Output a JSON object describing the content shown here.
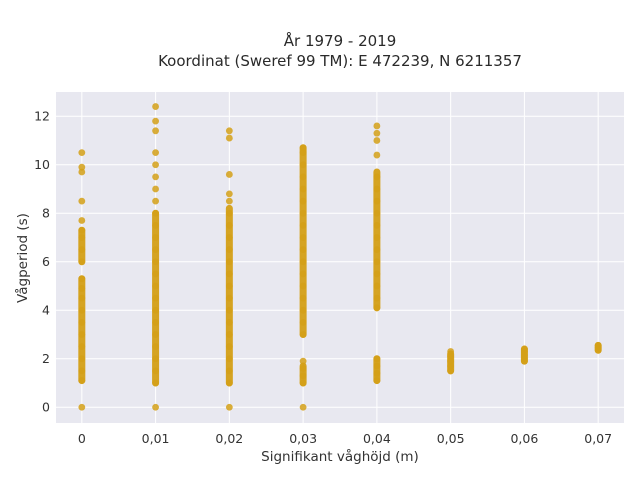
{
  "chart_data": {
    "type": "scatter",
    "title_line1": "År 1979 - 2019",
    "title_line2": "Koordinat (Sweref 99 TM): E 472239, N 6211357",
    "xlabel": "Signifikant våghöjd (m)",
    "ylabel": "Vågperiod (s)",
    "xlim": [
      -0.0035,
      0.0735
    ],
    "ylim": [
      -0.65,
      13.0
    ],
    "x_ticks": [
      0,
      0.01,
      0.02,
      0.03,
      0.04,
      0.05,
      0.06,
      0.07
    ],
    "x_tick_labels": [
      "0",
      "0,01",
      "0,02",
      "0,03",
      "0,04",
      "0,05",
      "0,06",
      "0,07"
    ],
    "y_ticks": [
      0,
      2,
      4,
      6,
      8,
      10,
      12
    ],
    "y_tick_labels": [
      "0",
      "2",
      "4",
      "6",
      "8",
      "10",
      "12"
    ],
    "grid": true,
    "colors": {
      "marker": "#D4A017",
      "plot_background": "#E8E8F0",
      "grid": "#FFFFFF"
    },
    "series": [
      {
        "points": [
          [
            0,
            0
          ],
          [
            0,
            1.1
          ],
          [
            0,
            1.5
          ],
          [
            0,
            2.0
          ],
          [
            0,
            2.5
          ],
          [
            0,
            3.0
          ],
          [
            0,
            3.5
          ],
          [
            0,
            4.0
          ],
          [
            0,
            4.5
          ],
          [
            0,
            4.9
          ],
          [
            0,
            5.3
          ],
          [
            0,
            6.0
          ],
          [
            0,
            6.5
          ],
          [
            0,
            7.0
          ],
          [
            0,
            7.3
          ],
          [
            0,
            7.7
          ],
          [
            0,
            8.5
          ],
          [
            0,
            9.7
          ],
          [
            0,
            9.9
          ],
          [
            0,
            10.5
          ],
          [
            0.01,
            0
          ],
          [
            0.01,
            1.0
          ],
          [
            0.01,
            1.5
          ],
          [
            0.01,
            2.0
          ],
          [
            0.01,
            2.5
          ],
          [
            0.01,
            3.0
          ],
          [
            0.01,
            3.5
          ],
          [
            0.01,
            4.0
          ],
          [
            0.01,
            4.5
          ],
          [
            0.01,
            5.0
          ],
          [
            0.01,
            5.5
          ],
          [
            0.01,
            6.0
          ],
          [
            0.01,
            6.5
          ],
          [
            0.01,
            7.0
          ],
          [
            0.01,
            7.5
          ],
          [
            0.01,
            8.0
          ],
          [
            0.01,
            8.5
          ],
          [
            0.01,
            9.0
          ],
          [
            0.01,
            9.5
          ],
          [
            0.01,
            10.0
          ],
          [
            0.01,
            10.5
          ],
          [
            0.01,
            11.4
          ],
          [
            0.01,
            11.8
          ],
          [
            0.01,
            12.4
          ],
          [
            0.02,
            0
          ],
          [
            0.02,
            1.0
          ],
          [
            0.02,
            1.5
          ],
          [
            0.02,
            2.0
          ],
          [
            0.02,
            2.5
          ],
          [
            0.02,
            3.0
          ],
          [
            0.02,
            3.5
          ],
          [
            0.02,
            4.0
          ],
          [
            0.02,
            4.5
          ],
          [
            0.02,
            5.0
          ],
          [
            0.02,
            5.5
          ],
          [
            0.02,
            6.0
          ],
          [
            0.02,
            6.5
          ],
          [
            0.02,
            7.0
          ],
          [
            0.02,
            7.5
          ],
          [
            0.02,
            8.0
          ],
          [
            0.02,
            8.5
          ],
          [
            0.02,
            8.8
          ],
          [
            0.02,
            9.6
          ],
          [
            0.02,
            11.1
          ],
          [
            0.02,
            11.4
          ],
          [
            0.03,
            0
          ],
          [
            0.03,
            1.0
          ],
          [
            0.03,
            1.3
          ],
          [
            0.03,
            1.6
          ],
          [
            0.03,
            1.9
          ],
          [
            0.03,
            3.0
          ],
          [
            0.03,
            3.5
          ],
          [
            0.03,
            4.0
          ],
          [
            0.03,
            4.5
          ],
          [
            0.03,
            5.0
          ],
          [
            0.03,
            5.5
          ],
          [
            0.03,
            6.0
          ],
          [
            0.03,
            6.5
          ],
          [
            0.03,
            7.0
          ],
          [
            0.03,
            7.5
          ],
          [
            0.03,
            8.0
          ],
          [
            0.03,
            8.5
          ],
          [
            0.03,
            9.0
          ],
          [
            0.03,
            9.5
          ],
          [
            0.03,
            10.0
          ],
          [
            0.03,
            10.5
          ],
          [
            0.03,
            10.7
          ],
          [
            0.04,
            1.1
          ],
          [
            0.04,
            1.4
          ],
          [
            0.04,
            1.7
          ],
          [
            0.04,
            2.0
          ],
          [
            0.04,
            4.1
          ],
          [
            0.04,
            4.5
          ],
          [
            0.04,
            5.0
          ],
          [
            0.04,
            5.5
          ],
          [
            0.04,
            6.0
          ],
          [
            0.04,
            6.5
          ],
          [
            0.04,
            7.0
          ],
          [
            0.04,
            7.5
          ],
          [
            0.04,
            8.0
          ],
          [
            0.04,
            8.5
          ],
          [
            0.04,
            9.0
          ],
          [
            0.04,
            9.5
          ],
          [
            0.04,
            10.4
          ],
          [
            0.04,
            11.0
          ],
          [
            0.04,
            11.3
          ],
          [
            0.04,
            11.6
          ],
          [
            0.05,
            1.5
          ],
          [
            0.05,
            1.7
          ],
          [
            0.05,
            1.9
          ],
          [
            0.05,
            2.1
          ],
          [
            0.05,
            2.3
          ],
          [
            0.06,
            1.9
          ],
          [
            0.06,
            2.0
          ],
          [
            0.06,
            2.15
          ],
          [
            0.06,
            2.3
          ],
          [
            0.06,
            2.4
          ],
          [
            0.07,
            2.35
          ],
          [
            0.07,
            2.45
          ],
          [
            0.07,
            2.55
          ]
        ]
      }
    ],
    "dense_segments": [
      [
        0,
        1.1,
        5.3
      ],
      [
        0,
        6.0,
        7.3
      ],
      [
        0.01,
        1.0,
        8.0
      ],
      [
        0.02,
        1.0,
        8.2
      ],
      [
        0.03,
        3.0,
        10.7
      ],
      [
        0.03,
        1.0,
        1.7
      ],
      [
        0.04,
        4.1,
        9.7
      ],
      [
        0.04,
        1.1,
        2.0
      ],
      [
        0.05,
        1.5,
        2.2
      ],
      [
        0.06,
        1.9,
        2.4
      ],
      [
        0.07,
        2.35,
        2.55
      ]
    ]
  }
}
